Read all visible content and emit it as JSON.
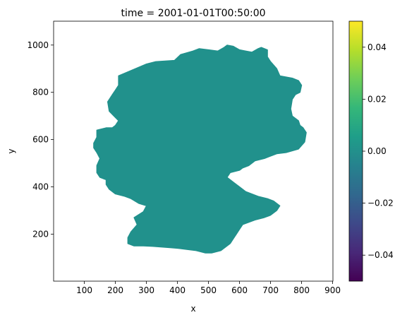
{
  "chart_data": {
    "type": "heatmap",
    "title": "time = 2001-01-01T00:50:00",
    "xlabel": "x",
    "ylabel": "y",
    "xlim": [
      1,
      901
    ],
    "ylim": [
      1,
      1101
    ],
    "x_ticks": [
      100,
      200,
      300,
      400,
      500,
      600,
      700,
      800,
      900
    ],
    "y_ticks": [
      200,
      400,
      600,
      800,
      1000
    ],
    "field_value": 0.0,
    "field_color": "#21918c",
    "region_outline": [
      [
        210,
        870
      ],
      [
        300,
        920
      ],
      [
        330,
        930
      ],
      [
        390,
        935
      ],
      [
        410,
        960
      ],
      [
        450,
        975
      ],
      [
        470,
        985
      ],
      [
        500,
        980
      ],
      [
        530,
        975
      ],
      [
        550,
        990
      ],
      [
        560,
        1000
      ],
      [
        580,
        995
      ],
      [
        600,
        980
      ],
      [
        620,
        975
      ],
      [
        640,
        970
      ],
      [
        660,
        985
      ],
      [
        670,
        990
      ],
      [
        690,
        980
      ],
      [
        690,
        950
      ],
      [
        700,
        930
      ],
      [
        720,
        900
      ],
      [
        730,
        870
      ],
      [
        770,
        860
      ],
      [
        790,
        850
      ],
      [
        800,
        830
      ],
      [
        795,
        800
      ],
      [
        780,
        790
      ],
      [
        770,
        770
      ],
      [
        765,
        730
      ],
      [
        770,
        700
      ],
      [
        790,
        680
      ],
      [
        795,
        660
      ],
      [
        805,
        650
      ],
      [
        815,
        630
      ],
      [
        810,
        590
      ],
      [
        790,
        560
      ],
      [
        750,
        545
      ],
      [
        720,
        540
      ],
      [
        680,
        520
      ],
      [
        650,
        510
      ],
      [
        630,
        490
      ],
      [
        610,
        480
      ],
      [
        600,
        470
      ],
      [
        570,
        460
      ],
      [
        560,
        440
      ],
      [
        580,
        420
      ],
      [
        600,
        400
      ],
      [
        620,
        380
      ],
      [
        640,
        370
      ],
      [
        660,
        360
      ],
      [
        690,
        350
      ],
      [
        710,
        340
      ],
      [
        730,
        320
      ],
      [
        720,
        300
      ],
      [
        700,
        280
      ],
      [
        680,
        270
      ],
      [
        650,
        260
      ],
      [
        630,
        250
      ],
      [
        610,
        240
      ],
      [
        600,
        220
      ],
      [
        590,
        200
      ],
      [
        580,
        180
      ],
      [
        570,
        160
      ],
      [
        540,
        130
      ],
      [
        510,
        120
      ],
      [
        490,
        120
      ],
      [
        460,
        130
      ],
      [
        430,
        135
      ],
      [
        400,
        140
      ],
      [
        380,
        142
      ],
      [
        350,
        145
      ],
      [
        320,
        148
      ],
      [
        290,
        150
      ],
      [
        260,
        150
      ],
      [
        240,
        160
      ],
      [
        240,
        185
      ],
      [
        250,
        210
      ],
      [
        270,
        240
      ],
      [
        260,
        270
      ],
      [
        290,
        295
      ],
      [
        300,
        320
      ],
      [
        275,
        330
      ],
      [
        250,
        350
      ],
      [
        230,
        360
      ],
      [
        200,
        370
      ],
      [
        180,
        390
      ],
      [
        170,
        410
      ],
      [
        170,
        430
      ],
      [
        150,
        440
      ],
      [
        140,
        460
      ],
      [
        140,
        490
      ],
      [
        150,
        520
      ],
      [
        140,
        545
      ],
      [
        130,
        565
      ],
      [
        130,
        585
      ],
      [
        140,
        610
      ],
      [
        140,
        640
      ],
      [
        170,
        650
      ],
      [
        190,
        650
      ],
      [
        200,
        660
      ],
      [
        210,
        680
      ],
      [
        195,
        700
      ],
      [
        180,
        720
      ],
      [
        175,
        760
      ],
      [
        190,
        790
      ],
      [
        200,
        810
      ],
      [
        210,
        830
      ],
      [
        210,
        850
      ]
    ],
    "colorbar": {
      "vmin": -0.05,
      "vmax": 0.05,
      "ticks": [
        -0.04,
        -0.02,
        0.0,
        0.02,
        0.04
      ],
      "tick_labels": [
        "−0.04",
        "−0.02",
        "0.00",
        "0.02",
        "0.04"
      ],
      "colormap": "viridis",
      "stops": [
        "#440154",
        "#482878",
        "#3e4989",
        "#31688e",
        "#26828e",
        "#1f9e89",
        "#35b779",
        "#6ece58",
        "#b5de2b",
        "#fde725"
      ]
    }
  }
}
